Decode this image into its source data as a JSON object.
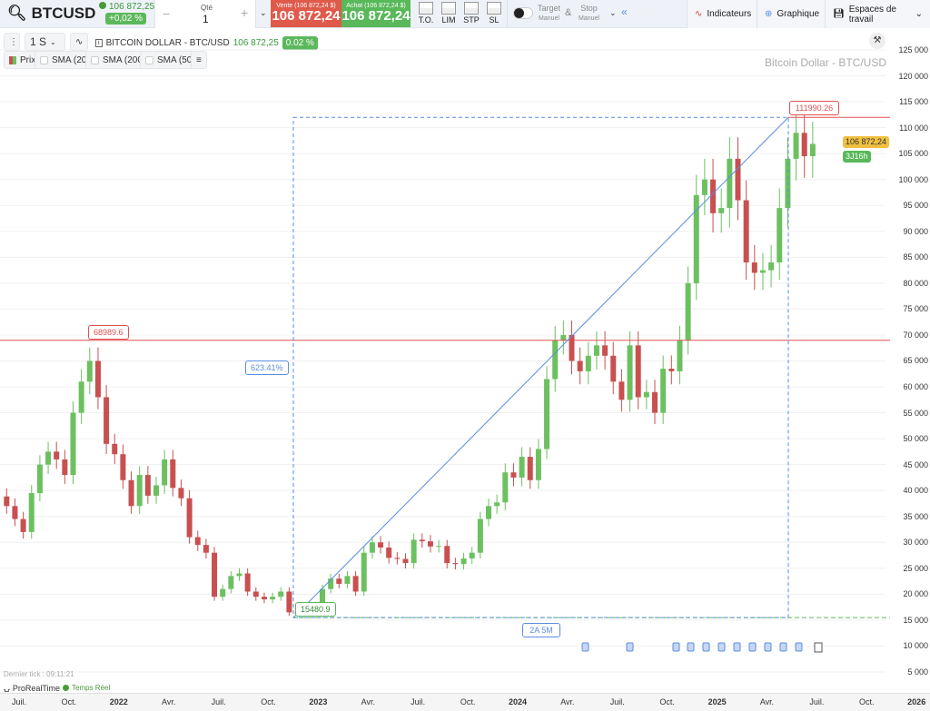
{
  "header": {
    "symbol": "BTCUSD",
    "last": "106 872,25",
    "change": "+0,02 %",
    "qty_label": "Qté",
    "qty_value": "1",
    "qty_minus": "−",
    "qty_plus": "+",
    "sell_label": "Vente (106 872,24 $)",
    "sell_price": "106 872,24",
    "buy_label": "Achat (106 872,24 $)",
    "buy_price": "106 872,24",
    "orders": [
      "T.O.",
      "LIM",
      "STP",
      "SL"
    ],
    "target": "Target",
    "target_sub": "Manuel",
    "amp": "&",
    "stop": "Stop",
    "stop_sub": "Manuel",
    "collapse": "«",
    "indicators": "Indicateurs",
    "chart": "Graphique",
    "workspaces": "Espaces de travail"
  },
  "toolbar": {
    "timeframe": "1 S",
    "instrument": "BITCOIN DOLLAR - BTC/USD",
    "price": "106 872,25",
    "change": "0.02 %",
    "legend": [
      "Prix",
      "SMA (20)",
      "SMA (200)",
      "SMA (50)"
    ]
  },
  "chart": {
    "watermark": "Bitcoin Dollar - BTC/USD",
    "last_tag": "106 872,24",
    "countdown": "3J16h",
    "last_tick": "Dernier tick : 09:11:21",
    "brand": "ProRealTime",
    "realtime": "Temps Réel",
    "colors": {
      "up": "#6cc060",
      "down": "#c85050",
      "accent": "#5a8ee0",
      "high_line": "#e05050",
      "low_line": "#58b85a"
    }
  },
  "chart_data": {
    "type": "candlestick",
    "ylim": [
      5000,
      125000
    ],
    "y_ticks": [
      "125 000",
      "120 000",
      "115 000",
      "110 000",
      "105 000",
      "100 000",
      "95 000",
      "90 000",
      "85 000",
      "80 000",
      "75 000",
      "70 000",
      "65 000",
      "60 000",
      "55 000",
      "50 000",
      "45 000",
      "40 000",
      "35 000",
      "30 000",
      "25 000",
      "20 000",
      "15 000",
      "10 000",
      "5 000"
    ],
    "x_ticks": [
      "Juil.",
      "Oct.",
      "2022",
      "Avr.",
      "Juil.",
      "Oct.",
      "2023",
      "Avr.",
      "Juil.",
      "Oct.",
      "2024",
      "Avr.",
      "Juil.",
      "Oct.",
      "2025",
      "Avr.",
      "Juil.",
      "Oct.",
      "2026"
    ],
    "biweekly_closes": [
      {
        "month": "2021-06",
        "c": [
          37000,
          34500
        ]
      },
      {
        "month": "2021-07",
        "c": [
          32000,
          39500
        ]
      },
      {
        "month": "2021-08",
        "c": [
          45000,
          47500
        ]
      },
      {
        "month": "2021-09",
        "c": [
          46000,
          43000
        ]
      },
      {
        "month": "2021-10",
        "c": [
          55000,
          61000
        ]
      },
      {
        "month": "2021-11",
        "c": [
          65000,
          58000
        ]
      },
      {
        "month": "2021-12",
        "c": [
          49000,
          47000
        ]
      },
      {
        "month": "2022-01",
        "c": [
          42000,
          37000
        ]
      },
      {
        "month": "2022-02",
        "c": [
          43000,
          39000
        ]
      },
      {
        "month": "2022-03",
        "c": [
          41000,
          46000
        ]
      },
      {
        "month": "2022-04",
        "c": [
          40500,
          38500
        ]
      },
      {
        "month": "2022-05",
        "c": [
          31000,
          29500
        ]
      },
      {
        "month": "2022-06",
        "c": [
          28000,
          19500
        ]
      },
      {
        "month": "2022-07",
        "c": [
          21000,
          23500
        ]
      },
      {
        "month": "2022-08",
        "c": [
          24000,
          20500
        ]
      },
      {
        "month": "2022-09",
        "c": [
          19500,
          19000
        ]
      },
      {
        "month": "2022-10",
        "c": [
          19500,
          20500
        ]
      },
      {
        "month": "2022-11",
        "c": [
          16500,
          16400
        ]
      },
      {
        "month": "2022-12",
        "c": [
          17000,
          16600
        ]
      },
      {
        "month": "2023-01",
        "c": [
          21000,
          23000
        ]
      },
      {
        "month": "2023-02",
        "c": [
          22000,
          23500
        ]
      },
      {
        "month": "2023-03",
        "c": [
          20500,
          28000
        ]
      },
      {
        "month": "2023-04",
        "c": [
          30000,
          29000
        ]
      },
      {
        "month": "2023-05",
        "c": [
          27000,
          26800
        ]
      },
      {
        "month": "2023-06",
        "c": [
          26000,
          30500
        ]
      },
      {
        "month": "2023-07",
        "c": [
          30200,
          29200
        ]
      },
      {
        "month": "2023-08",
        "c": [
          29300,
          26000
        ]
      },
      {
        "month": "2023-09",
        "c": [
          25800,
          26900
        ]
      },
      {
        "month": "2023-10",
        "c": [
          28000,
          34500
        ]
      },
      {
        "month": "2023-11",
        "c": [
          37000,
          37700
        ]
      },
      {
        "month": "2023-12",
        "c": [
          43500,
          42500
        ]
      },
      {
        "month": "2024-01",
        "c": [
          46500,
          42000
        ]
      },
      {
        "month": "2024-02",
        "c": [
          48000,
          61500
        ]
      },
      {
        "month": "2024-03",
        "c": [
          69000,
          70000
        ]
      },
      {
        "month": "2024-04",
        "c": [
          65000,
          63000
        ]
      },
      {
        "month": "2024-05",
        "c": [
          66000,
          68000
        ]
      },
      {
        "month": "2024-06",
        "c": [
          66000,
          61000
        ]
      },
      {
        "month": "2024-07",
        "c": [
          57500,
          68000
        ]
      },
      {
        "month": "2024-08",
        "c": [
          58000,
          59000
        ]
      },
      {
        "month": "2024-09",
        "c": [
          55000,
          63500
        ]
      },
      {
        "month": "2024-10",
        "c": [
          63000,
          69000
        ]
      },
      {
        "month": "2024-11",
        "c": [
          80000,
          97000
        ]
      },
      {
        "month": "2024-12",
        "c": [
          100000,
          93500
        ]
      },
      {
        "month": "2025-01",
        "c": [
          94500,
          104000
        ]
      },
      {
        "month": "2025-02",
        "c": [
          96000,
          84000
        ]
      },
      {
        "month": "2025-03",
        "c": [
          82000,
          82500
        ]
      },
      {
        "month": "2025-04",
        "c": [
          84000,
          94500
        ]
      },
      {
        "month": "2025-05",
        "c": [
          104000,
          109000
        ]
      },
      {
        "month": "2025-06",
        "c": [
          104500,
          106872
        ]
      }
    ],
    "annotations": {
      "high": "111990.26",
      "prev_high": "68989.6",
      "low": "15480.9",
      "change": "623.41%",
      "duration": "2A 5M"
    }
  }
}
